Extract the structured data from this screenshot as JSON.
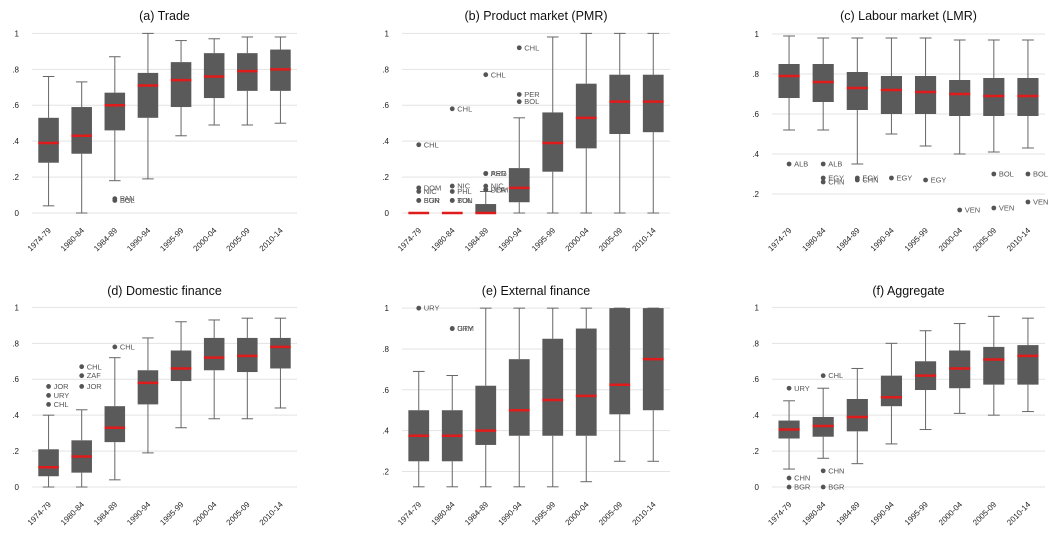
{
  "colors": {
    "box": "#5a5a5a",
    "median": "#e01b1b",
    "whisker": "#666666",
    "grid": "#e3e3e3",
    "outlier": "#555555"
  },
  "chart_data": [
    {
      "type": "boxplot",
      "title": "(a) Trade",
      "categories": [
        "1974-79",
        "1980-84",
        "1984-89",
        "1990-94",
        "1995-99",
        "2000-04",
        "2005-09",
        "2010-14"
      ],
      "ylim": [
        -0.05,
        1.03
      ],
      "yticks": [
        0,
        0.2,
        0.4,
        0.6,
        0.8,
        1
      ],
      "ytick_labels": [
        "0",
        ".2",
        ".4",
        ".6",
        ".8",
        "1"
      ],
      "grid": true,
      "boxes": [
        {
          "low": 0.04,
          "q1": 0.28,
          "median": 0.39,
          "q3": 0.53,
          "high": 0.76
        },
        {
          "low": 0.0,
          "q1": 0.33,
          "median": 0.43,
          "q3": 0.59,
          "high": 0.73
        },
        {
          "low": 0.18,
          "q1": 0.46,
          "median": 0.6,
          "q3": 0.67,
          "high": 0.87
        },
        {
          "low": 0.19,
          "q1": 0.53,
          "median": 0.71,
          "q3": 0.78,
          "high": 1.0
        },
        {
          "low": 0.43,
          "q1": 0.59,
          "median": 0.74,
          "q3": 0.84,
          "high": 0.96
        },
        {
          "low": 0.49,
          "q1": 0.64,
          "median": 0.76,
          "q3": 0.89,
          "high": 0.97
        },
        {
          "low": 0.49,
          "q1": 0.68,
          "median": 0.79,
          "q3": 0.89,
          "high": 0.98
        },
        {
          "low": 0.5,
          "q1": 0.68,
          "median": 0.8,
          "q3": 0.91,
          "high": 0.98
        }
      ],
      "outliers": [
        {
          "cat": 2,
          "y": 0.08,
          "label": "PAN"
        },
        {
          "cat": 2,
          "y": 0.07,
          "label": "BOL"
        }
      ]
    },
    {
      "type": "boxplot",
      "title": "(b) Product market (PMR)",
      "categories": [
        "1974-79",
        "1980-84",
        "1984-89",
        "1990-94",
        "1995-99",
        "2000-04",
        "2005-09",
        "2010-14"
      ],
      "ylim": [
        -0.05,
        1.03
      ],
      "yticks": [
        0,
        0.2,
        0.4,
        0.6,
        0.8,
        1
      ],
      "ytick_labels": [
        "0",
        ".2",
        ".4",
        ".6",
        ".8",
        "1"
      ],
      "grid": true,
      "boxes": [
        {
          "low": 0.0,
          "q1": 0.0,
          "median": 0.0,
          "q3": 0.0,
          "high": 0.0
        },
        {
          "low": 0.0,
          "q1": 0.0,
          "median": 0.0,
          "q3": 0.0,
          "high": 0.0
        },
        {
          "low": 0.0,
          "q1": 0.0,
          "median": 0.0,
          "q3": 0.05,
          "high": 0.12
        },
        {
          "low": 0.0,
          "q1": 0.06,
          "median": 0.14,
          "q3": 0.25,
          "high": 0.53
        },
        {
          "low": 0.0,
          "q1": 0.23,
          "median": 0.39,
          "q3": 0.56,
          "high": 0.98
        },
        {
          "low": 0.0,
          "q1": 0.36,
          "median": 0.53,
          "q3": 0.72,
          "high": 1.0
        },
        {
          "low": 0.0,
          "q1": 0.44,
          "median": 0.62,
          "q3": 0.77,
          "high": 1.0
        },
        {
          "low": 0.0,
          "q1": 0.45,
          "median": 0.62,
          "q3": 0.77,
          "high": 1.0
        }
      ],
      "outliers": [
        {
          "cat": 0,
          "y": 0.38,
          "label": "CHL"
        },
        {
          "cat": 0,
          "y": 0.14,
          "label": "DOM"
        },
        {
          "cat": 0,
          "y": 0.12,
          "label": "NIC"
        },
        {
          "cat": 0,
          "y": 0.07,
          "label": "BGR"
        },
        {
          "cat": 0,
          "y": 0.07,
          "label": "SUN"
        },
        {
          "cat": 1,
          "y": 0.58,
          "label": "CHL"
        },
        {
          "cat": 1,
          "y": 0.15,
          "label": "NIC"
        },
        {
          "cat": 1,
          "y": 0.12,
          "label": "PHL"
        },
        {
          "cat": 1,
          "y": 0.07,
          "label": "TUN"
        },
        {
          "cat": 1,
          "y": 0.07,
          "label": "BOL"
        },
        {
          "cat": 2,
          "y": 0.77,
          "label": "CHL"
        },
        {
          "cat": 2,
          "y": 0.22,
          "label": "ARG"
        },
        {
          "cat": 2,
          "y": 0.22,
          "label": "PER"
        },
        {
          "cat": 2,
          "y": 0.15,
          "label": "NIC"
        },
        {
          "cat": 2,
          "y": 0.13,
          "label": "DOM"
        },
        {
          "cat": 2,
          "y": 0.13,
          "label": "PER"
        },
        {
          "cat": 3,
          "y": 0.92,
          "label": "CHL"
        },
        {
          "cat": 3,
          "y": 0.66,
          "label": "PER"
        },
        {
          "cat": 3,
          "y": 0.62,
          "label": "BOL"
        }
      ]
    },
    {
      "type": "boxplot",
      "title": "(c) Labour market (LMR)",
      "categories": [
        "1974-79",
        "1980-84",
        "1984-89",
        "1990-94",
        "1995-99",
        "2000-04",
        "2005-09",
        "2010-14"
      ],
      "ylim": [
        0.06,
        1.03
      ],
      "yticks": [
        0.2,
        0.4,
        0.6,
        0.8,
        1
      ],
      "ytick_labels": [
        ".2",
        ".4",
        ".6",
        ".8",
        "1"
      ],
      "grid": true,
      "boxes": [
        {
          "low": 0.52,
          "q1": 0.68,
          "median": 0.79,
          "q3": 0.85,
          "high": 0.99
        },
        {
          "low": 0.52,
          "q1": 0.66,
          "median": 0.76,
          "q3": 0.85,
          "high": 0.98
        },
        {
          "low": 0.35,
          "q1": 0.62,
          "median": 0.73,
          "q3": 0.81,
          "high": 0.98
        },
        {
          "low": 0.5,
          "q1": 0.6,
          "median": 0.72,
          "q3": 0.79,
          "high": 0.98
        },
        {
          "low": 0.44,
          "q1": 0.6,
          "median": 0.71,
          "q3": 0.79,
          "high": 0.98
        },
        {
          "low": 0.4,
          "q1": 0.59,
          "median": 0.7,
          "q3": 0.77,
          "high": 0.97
        },
        {
          "low": 0.41,
          "q1": 0.59,
          "median": 0.69,
          "q3": 0.78,
          "high": 0.97
        },
        {
          "low": 0.43,
          "q1": 0.59,
          "median": 0.69,
          "q3": 0.78,
          "high": 0.97
        }
      ],
      "outliers": [
        {
          "cat": 0,
          "y": 0.35,
          "label": "ALB"
        },
        {
          "cat": 1,
          "y": 0.35,
          "label": "ALB"
        },
        {
          "cat": 1,
          "y": 0.28,
          "label": "EGY"
        },
        {
          "cat": 1,
          "y": 0.26,
          "label": "CHN"
        },
        {
          "cat": 2,
          "y": 0.28,
          "label": "EGY"
        },
        {
          "cat": 2,
          "y": 0.27,
          "label": "CHN"
        },
        {
          "cat": 3,
          "y": 0.28,
          "label": "EGY"
        },
        {
          "cat": 4,
          "y": 0.27,
          "label": "EGY"
        },
        {
          "cat": 5,
          "y": 0.12,
          "label": "VEN"
        },
        {
          "cat": 6,
          "y": 0.3,
          "label": "BOL"
        },
        {
          "cat": 6,
          "y": 0.13,
          "label": "VEN"
        },
        {
          "cat": 7,
          "y": 0.3,
          "label": "BOL"
        },
        {
          "cat": 7,
          "y": 0.16,
          "label": "VEN"
        }
      ]
    },
    {
      "type": "boxplot",
      "title": "(d) Domestic finance",
      "categories": [
        "1974-79",
        "1980-84",
        "1984-89",
        "1990-94",
        "1995-99",
        "2000-04",
        "2005-09",
        "2010-14"
      ],
      "ylim": [
        -0.05,
        1.03
      ],
      "yticks": [
        0,
        0.2,
        0.4,
        0.6,
        0.8,
        1
      ],
      "ytick_labels": [
        "0",
        ".2",
        ".4",
        ".6",
        ".8",
        "1"
      ],
      "grid": true,
      "boxes": [
        {
          "low": 0.0,
          "q1": 0.06,
          "median": 0.11,
          "q3": 0.21,
          "high": 0.4
        },
        {
          "low": 0.0,
          "q1": 0.08,
          "median": 0.17,
          "q3": 0.26,
          "high": 0.43
        },
        {
          "low": 0.04,
          "q1": 0.25,
          "median": 0.33,
          "q3": 0.45,
          "high": 0.72
        },
        {
          "low": 0.19,
          "q1": 0.46,
          "median": 0.58,
          "q3": 0.65,
          "high": 0.83
        },
        {
          "low": 0.33,
          "q1": 0.59,
          "median": 0.66,
          "q3": 0.76,
          "high": 0.92
        },
        {
          "low": 0.38,
          "q1": 0.65,
          "median": 0.72,
          "q3": 0.83,
          "high": 0.93
        },
        {
          "low": 0.38,
          "q1": 0.64,
          "median": 0.73,
          "q3": 0.83,
          "high": 0.94
        },
        {
          "low": 0.44,
          "q1": 0.66,
          "median": 0.78,
          "q3": 0.83,
          "high": 0.94
        }
      ],
      "outliers": [
        {
          "cat": 0,
          "y": 0.56,
          "label": "JOR"
        },
        {
          "cat": 0,
          "y": 0.51,
          "label": "URY"
        },
        {
          "cat": 0,
          "y": 0.46,
          "label": "CHL"
        },
        {
          "cat": 1,
          "y": 0.67,
          "label": "CHL"
        },
        {
          "cat": 1,
          "y": 0.62,
          "label": "ZAF"
        },
        {
          "cat": 1,
          "y": 0.56,
          "label": "JOR"
        },
        {
          "cat": 2,
          "y": 0.78,
          "label": "CHL"
        }
      ]
    },
    {
      "type": "boxplot",
      "title": "(e) External finance",
      "categories": [
        "1974-79",
        "1980-84",
        "1984-89",
        "1990-94",
        "1995-99",
        "2000-04",
        "2005-09",
        "2010-14"
      ],
      "ylim": [
        0.08,
        1.03
      ],
      "yticks": [
        0.2,
        0.4,
        0.6,
        0.8,
        1
      ],
      "ytick_labels": [
        ".2",
        ".4",
        ".6",
        ".8",
        "1"
      ],
      "grid": true,
      "boxes": [
        {
          "low": 0.125,
          "q1": 0.25,
          "median": 0.375,
          "q3": 0.5,
          "high": 0.69
        },
        {
          "low": 0.125,
          "q1": 0.25,
          "median": 0.375,
          "q3": 0.5,
          "high": 0.67
        },
        {
          "low": 0.125,
          "q1": 0.33,
          "median": 0.4,
          "q3": 0.62,
          "high": 1.0
        },
        {
          "low": 0.125,
          "q1": 0.375,
          "median": 0.5,
          "q3": 0.75,
          "high": 1.0
        },
        {
          "low": 0.125,
          "q1": 0.375,
          "median": 0.55,
          "q3": 0.85,
          "high": 1.0
        },
        {
          "low": 0.15,
          "q1": 0.375,
          "median": 0.57,
          "q3": 0.9,
          "high": 1.0
        },
        {
          "low": 0.25,
          "q1": 0.48,
          "median": 0.625,
          "q3": 1.0,
          "high": 1.0
        },
        {
          "low": 0.25,
          "q1": 0.5,
          "median": 0.75,
          "q3": 1.0,
          "high": 1.0
        }
      ],
      "outliers": [
        {
          "cat": 0,
          "y": 1.0,
          "label": "URY"
        },
        {
          "cat": 1,
          "y": 0.9,
          "label": "GTM"
        },
        {
          "cat": 1,
          "y": 0.9,
          "label": "URY"
        }
      ]
    },
    {
      "type": "boxplot",
      "title": "(f) Aggregate",
      "categories": [
        "1974-79",
        "1980-84",
        "1984-89",
        "1990-94",
        "1995-99",
        "2000-04",
        "2005-09",
        "2010-14"
      ],
      "ylim": [
        -0.05,
        1.03
      ],
      "yticks": [
        0,
        0.2,
        0.4,
        0.6,
        0.8,
        1
      ],
      "ytick_labels": [
        "0",
        ".2",
        ".4",
        ".6",
        ".8",
        "1"
      ],
      "grid": true,
      "boxes": [
        {
          "low": 0.1,
          "q1": 0.27,
          "median": 0.32,
          "q3": 0.37,
          "high": 0.48
        },
        {
          "low": 0.16,
          "q1": 0.28,
          "median": 0.34,
          "q3": 0.39,
          "high": 0.55
        },
        {
          "low": 0.13,
          "q1": 0.31,
          "median": 0.39,
          "q3": 0.49,
          "high": 0.66
        },
        {
          "low": 0.24,
          "q1": 0.45,
          "median": 0.5,
          "q3": 0.62,
          "high": 0.8
        },
        {
          "low": 0.32,
          "q1": 0.54,
          "median": 0.62,
          "q3": 0.7,
          "high": 0.87
        },
        {
          "low": 0.41,
          "q1": 0.55,
          "median": 0.66,
          "q3": 0.76,
          "high": 0.91
        },
        {
          "low": 0.4,
          "q1": 0.57,
          "median": 0.71,
          "q3": 0.78,
          "high": 0.95
        },
        {
          "low": 0.42,
          "q1": 0.57,
          "median": 0.73,
          "q3": 0.79,
          "high": 0.94
        }
      ],
      "outliers": [
        {
          "cat": 0,
          "y": 0.55,
          "label": "URY"
        },
        {
          "cat": 0,
          "y": 0.05,
          "label": "CHN"
        },
        {
          "cat": 0,
          "y": 0.0,
          "label": "BGR"
        },
        {
          "cat": 1,
          "y": 0.62,
          "label": "CHL"
        },
        {
          "cat": 1,
          "y": 0.09,
          "label": "CHN"
        },
        {
          "cat": 1,
          "y": 0.0,
          "label": "BGR"
        }
      ]
    }
  ]
}
